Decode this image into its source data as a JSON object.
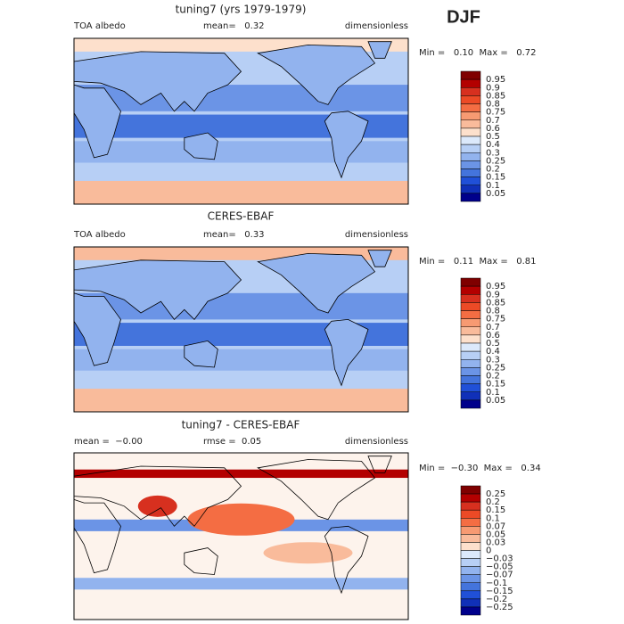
{
  "season": "DJF",
  "colors": [
    "#7f0000",
    "#b30000",
    "#d7301f",
    "#ec4a26",
    "#f46d43",
    "#f79a72",
    "#f9bb9b",
    "#fde0cc",
    "#dce9fb",
    "#b7cff5",
    "#92b3ee",
    "#6b94e6",
    "#4474dc",
    "#2050d8",
    "#1030b8",
    "#00008b"
  ],
  "panels": [
    {
      "title": "tuning7 (yrs 1979-1979)",
      "header": {
        "left": "TOA albedo",
        "center": "mean=   0.32",
        "right": "dimensionless"
      },
      "range": "Min =   0.10  Max =   0.72",
      "levels": [
        "0.95",
        "0.9",
        "0.85",
        "0.8",
        "0.75",
        "0.7",
        "0.6",
        "0.5",
        "0.4",
        "0.3",
        "0.25",
        "0.2",
        "0.15",
        "0.1",
        "0.05"
      ]
    },
    {
      "title": "CERES-EBAF",
      "header": {
        "left": "TOA albedo",
        "center": "mean=   0.33",
        "right": "dimensionless"
      },
      "range": "Min =   0.11  Max =   0.81",
      "levels": [
        "0.95",
        "0.9",
        "0.85",
        "0.8",
        "0.75",
        "0.7",
        "0.6",
        "0.5",
        "0.4",
        "0.3",
        "0.25",
        "0.2",
        "0.15",
        "0.1",
        "0.05"
      ]
    },
    {
      "title": "tuning7 - CERES-EBAF",
      "header": {
        "left": "mean =  −0.00",
        "center": "rmse =  0.05",
        "right": "dimensionless"
      },
      "range": "Min =  −0.30  Max =   0.34",
      "levels": [
        "0.25",
        "0.2",
        "0.15",
        "0.1",
        "0.07",
        "0.05",
        "0.03",
        "0",
        "−0.03",
        "−0.05",
        "−0.07",
        "−0.1",
        "−0.15",
        "−0.2",
        "−0.25"
      ]
    }
  ]
}
